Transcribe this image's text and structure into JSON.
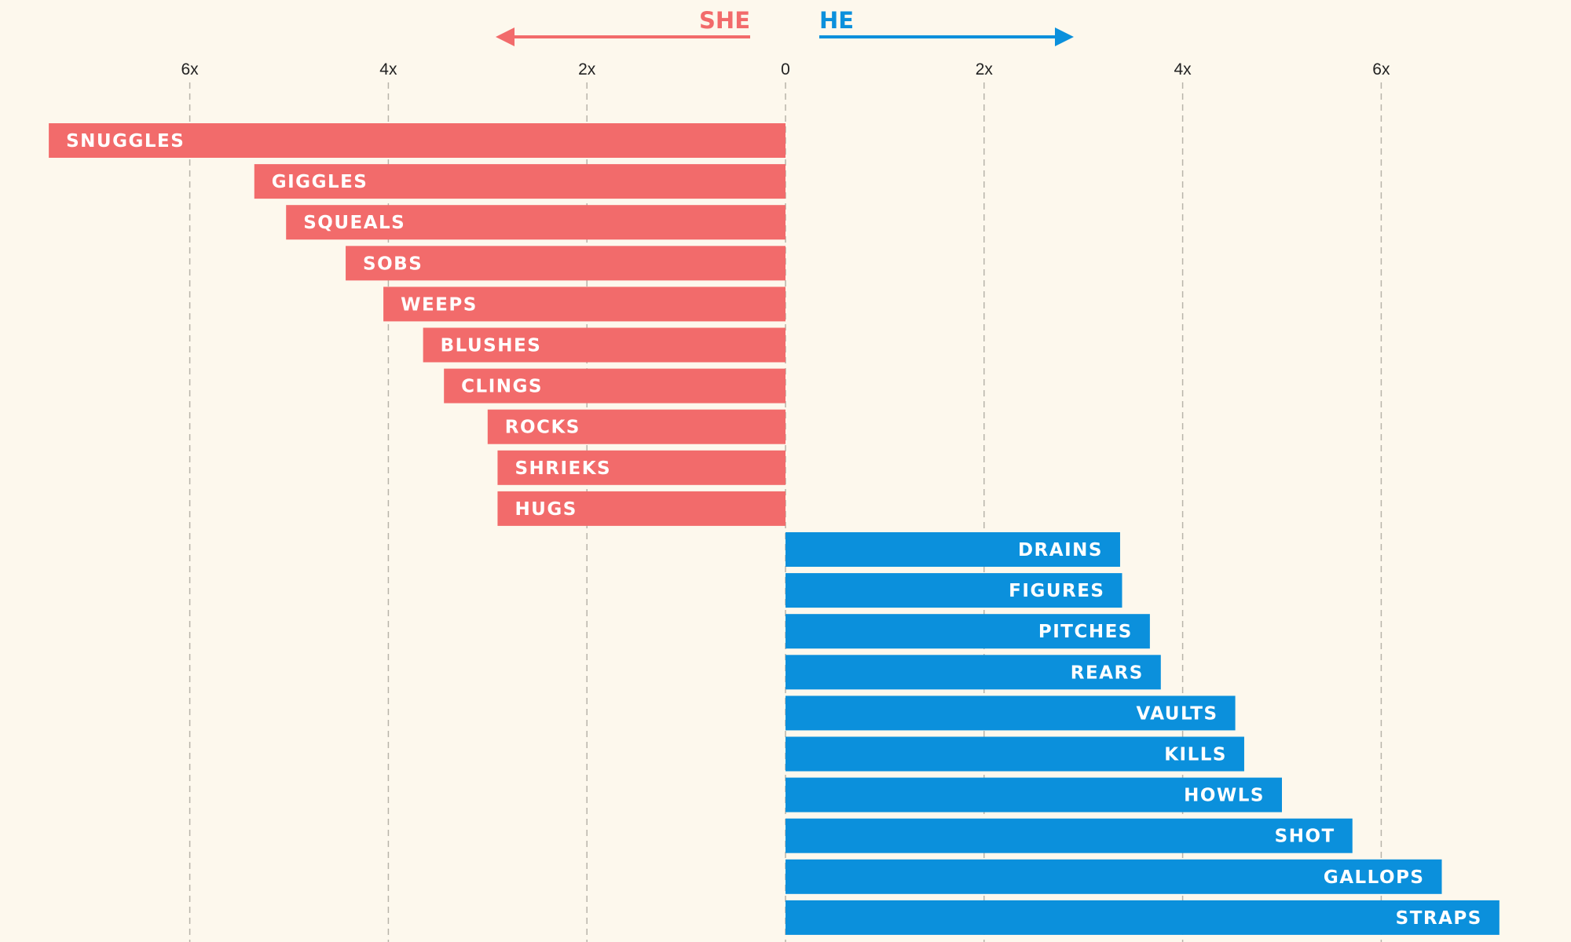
{
  "chart_data": {
    "type": "bar",
    "orientation": "horizontal",
    "title": "",
    "xlabel": "",
    "ylabel": "",
    "xlim": [
      -7.4,
      7.4
    ],
    "ticks": [
      {
        "value": -6,
        "label": "6x"
      },
      {
        "value": -4,
        "label": "4x"
      },
      {
        "value": -2,
        "label": "2x"
      },
      {
        "value": 0,
        "label": "0"
      },
      {
        "value": 2,
        "label": "2x"
      },
      {
        "value": 4,
        "label": "4x"
      },
      {
        "value": 6,
        "label": "6x"
      }
    ],
    "grid": true,
    "legend": {
      "placement": "top",
      "left": {
        "label": "SHE",
        "direction": "left",
        "color": "#f26b6b"
      },
      "right": {
        "label": "HE",
        "direction": "right",
        "color": "#0b90dc"
      }
    },
    "series": [
      {
        "name": "SHE",
        "color": "#f26b6b",
        "categories": [
          "SNUGGLES",
          "GIGGLES",
          "SQUEALS",
          "SOBS",
          "WEEPS",
          "BLUSHES",
          "CLINGS",
          "ROCKS",
          "SHRIEKS",
          "HUGS"
        ],
        "values": [
          7.42,
          5.35,
          5.03,
          4.43,
          4.05,
          3.65,
          3.44,
          3.0,
          2.9,
          2.9
        ]
      },
      {
        "name": "HE",
        "color": "#0b90dc",
        "categories": [
          "DRAINS",
          "FIGURES",
          "PITCHES",
          "REARS",
          "VAULTS",
          "KILLS",
          "HOWLS",
          "SHOT",
          "GALLOPS",
          "STRAPS"
        ],
        "values": [
          3.37,
          3.39,
          3.67,
          3.78,
          4.53,
          4.62,
          5.0,
          5.71,
          6.61,
          7.19
        ]
      }
    ]
  }
}
